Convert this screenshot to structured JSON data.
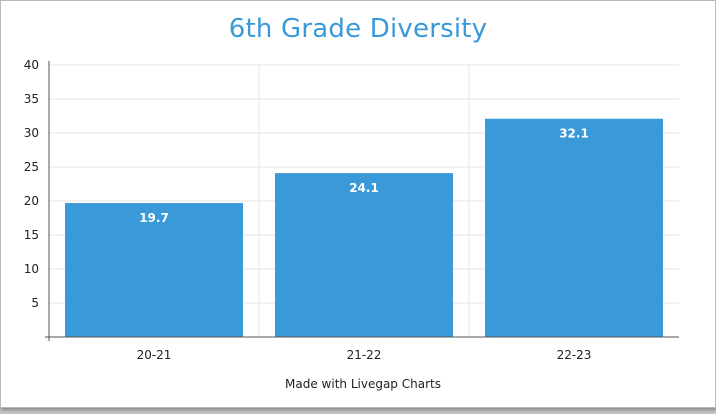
{
  "chart_data": {
    "type": "bar",
    "title": "6th Grade Diversity",
    "categories": [
      "20-21",
      "21-22",
      "22-23"
    ],
    "values": [
      19.7,
      24.1,
      32.1
    ],
    "data_labels": [
      "19.7",
      "24.1",
      "32.1"
    ],
    "xlabel": "",
    "ylabel": "",
    "ylim": [
      0,
      40
    ],
    "yticks": [
      5,
      10,
      15,
      20,
      25,
      30,
      35,
      40
    ],
    "ytick_labels": [
      "5",
      "10",
      "15",
      "20",
      "25",
      "30",
      "35",
      "40"
    ],
    "grid": true,
    "legend": "none",
    "bar_color": "#3a99d8"
  },
  "footer": {
    "credit": "Made with Livegap Charts"
  }
}
